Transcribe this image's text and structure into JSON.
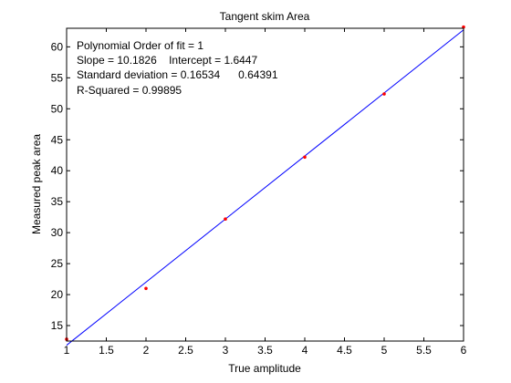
{
  "chart_data": {
    "type": "scatter",
    "title": "Tangent skim Area",
    "xlabel": "True amplitude",
    "ylabel": "Measured peak area",
    "xlim": [
      1,
      6
    ],
    "ylim": [
      12.5,
      63
    ],
    "xticks": [
      1,
      1.5,
      2,
      2.5,
      3,
      3.5,
      4,
      4.5,
      5,
      5.5,
      6
    ],
    "xtick_labels": [
      "1",
      "1.5",
      "2",
      "2.5",
      "3",
      "3.5",
      "4",
      "4.5",
      "5",
      "5.5",
      "6"
    ],
    "yticks": [
      15,
      20,
      25,
      30,
      35,
      40,
      45,
      50,
      55,
      60
    ],
    "ytick_labels": [
      "15",
      "20",
      "25",
      "30",
      "35",
      "40",
      "45",
      "50",
      "55",
      "60"
    ],
    "grid": false,
    "series": [
      {
        "kind": "points",
        "color": "#ff0000",
        "x": [
          1,
          2,
          3,
          4,
          5,
          6
        ],
        "y": [
          12.8,
          21.0,
          32.2,
          42.2,
          52.4,
          63.2
        ]
      },
      {
        "kind": "fit-line",
        "color": "#0000ff",
        "x": [
          1,
          6
        ],
        "y": [
          11.83,
          62.74
        ]
      }
    ],
    "annotations": [
      "Polynomial Order of fit = 1",
      "Slope = 10.1826    Intercept = 1.6447",
      "Standard deviation = 0.16534      0.64391",
      "R-Squared = 0.99895"
    ]
  }
}
